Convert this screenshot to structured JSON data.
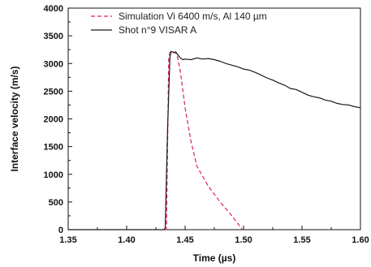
{
  "chart_data": {
    "type": "line",
    "xlabel": "Time (µs)",
    "ylabel": "Interface velocity (m/s)",
    "xlim": [
      1.35,
      1.6
    ],
    "ylim": [
      0,
      4000
    ],
    "xticks": [
      "1.35",
      "1.40",
      "1.45",
      "1.50",
      "1.55",
      "1.60"
    ],
    "yticks": [
      "0",
      "500",
      "1000",
      "1500",
      "2000",
      "2500",
      "3000",
      "3500",
      "4000"
    ],
    "grid": false,
    "legend_position": "top-center",
    "series": [
      {
        "name": "Simulation Vi 6400 m/s, Al 140 µm",
        "color": "#e0204a",
        "style": "dashed",
        "points": [
          [
            1.433,
            0
          ],
          [
            1.434,
            0
          ],
          [
            1.435,
            1500
          ],
          [
            1.436,
            3100
          ],
          [
            1.437,
            3200
          ],
          [
            1.44,
            3200
          ],
          [
            1.443,
            3180
          ],
          [
            1.446,
            2850
          ],
          [
            1.45,
            2200
          ],
          [
            1.455,
            1600
          ],
          [
            1.46,
            1150
          ],
          [
            1.47,
            780
          ],
          [
            1.48,
            500
          ],
          [
            1.49,
            250
          ],
          [
            1.499,
            0
          ]
        ]
      },
      {
        "name": "Shot n°9 VISAR A",
        "color": "#1a1a1a",
        "style": "solid",
        "points": [
          [
            1.35,
            0
          ],
          [
            1.432,
            0
          ],
          [
            1.433,
            30
          ],
          [
            1.435,
            1800
          ],
          [
            1.437,
            3100
          ],
          [
            1.438,
            3220
          ],
          [
            1.44,
            3200
          ],
          [
            1.442,
            3210
          ],
          [
            1.444,
            3150
          ],
          [
            1.446,
            3100
          ],
          [
            1.448,
            3070
          ],
          [
            1.45,
            3080
          ],
          [
            1.455,
            3070
          ],
          [
            1.46,
            3100
          ],
          [
            1.465,
            3080
          ],
          [
            1.47,
            3090
          ],
          [
            1.475,
            3070
          ],
          [
            1.48,
            3040
          ],
          [
            1.485,
            3000
          ],
          [
            1.49,
            2970
          ],
          [
            1.495,
            2940
          ],
          [
            1.5,
            2900
          ],
          [
            1.505,
            2880
          ],
          [
            1.51,
            2840
          ],
          [
            1.515,
            2790
          ],
          [
            1.52,
            2740
          ],
          [
            1.525,
            2700
          ],
          [
            1.53,
            2650
          ],
          [
            1.535,
            2610
          ],
          [
            1.54,
            2550
          ],
          [
            1.545,
            2530
          ],
          [
            1.55,
            2480
          ],
          [
            1.555,
            2430
          ],
          [
            1.56,
            2400
          ],
          [
            1.565,
            2380
          ],
          [
            1.57,
            2340
          ],
          [
            1.575,
            2320
          ],
          [
            1.58,
            2280
          ],
          [
            1.585,
            2260
          ],
          [
            1.59,
            2250
          ],
          [
            1.595,
            2220
          ],
          [
            1.6,
            2200
          ]
        ]
      }
    ]
  }
}
